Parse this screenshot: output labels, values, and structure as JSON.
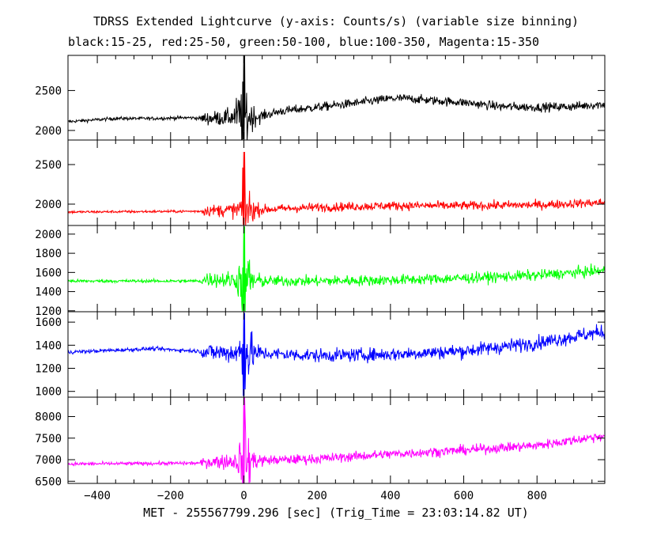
{
  "chart_data": {
    "type": "line",
    "title": "TDRSS Extended Lightcurve (y-axis: Counts/s) (variable size binning)",
    "subtitle": "black:15-25, red:25-50, green:50-100, blue:100-350, Magenta:15-350",
    "xlabel": "MET - 255567799.296 [sec] (Trig_Time = 23:03:14.82 UT)",
    "xlim": [
      -480,
      985
    ],
    "x_ticks": [
      -400,
      -200,
      0,
      200,
      400,
      600,
      800
    ],
    "x_tick_labels": [
      "−400",
      "−200",
      "0",
      "200",
      "400",
      "600",
      "800"
    ],
    "panels": [
      {
        "band": "15-25",
        "color": "#000000",
        "ylim": [
          1880,
          2940
        ],
        "y_ticks": [
          2000,
          2500
        ],
        "y_tick_labels": [
          "2000",
          "2500"
        ],
        "profile": [
          [
            -480,
            2110
          ],
          [
            -350,
            2150
          ],
          [
            -250,
            2150
          ],
          [
            -150,
            2160
          ],
          [
            -110,
            2150
          ],
          [
            -50,
            2160
          ],
          [
            -10,
            2180
          ],
          [
            40,
            2170
          ],
          [
            100,
            2240
          ],
          [
            200,
            2290
          ],
          [
            300,
            2340
          ],
          [
            350,
            2370
          ],
          [
            400,
            2400
          ],
          [
            450,
            2400
          ],
          [
            500,
            2380
          ],
          [
            600,
            2350
          ],
          [
            700,
            2300
          ],
          [
            800,
            2290
          ],
          [
            900,
            2300
          ],
          [
            985,
            2330
          ]
        ],
        "noise": [
          [
            -480,
            15
          ],
          [
            -120,
            15
          ],
          [
            -110,
            55
          ],
          [
            -30,
            80
          ],
          [
            0,
            350
          ],
          [
            30,
            80
          ],
          [
            60,
            40
          ],
          [
            985,
            40
          ]
        ],
        "spike_max": 2940,
        "spike_min": 1890
      },
      {
        "band": "25-50",
        "color": "#ff0000",
        "ylim": [
          1730,
          2810
        ],
        "y_ticks": [
          2000,
          2500
        ],
        "y_tick_labels": [
          "2000",
          "2500"
        ],
        "profile": [
          [
            -480,
            1900
          ],
          [
            -120,
            1910
          ],
          [
            -100,
            1920
          ],
          [
            40,
            1930
          ],
          [
            200,
            1960
          ],
          [
            400,
            1980
          ],
          [
            600,
            1980
          ],
          [
            800,
            1990
          ],
          [
            985,
            2020
          ]
        ],
        "noise": [
          [
            -480,
            12
          ],
          [
            -120,
            12
          ],
          [
            -110,
            45
          ],
          [
            -20,
            70
          ],
          [
            0,
            300
          ],
          [
            30,
            70
          ],
          [
            60,
            40
          ],
          [
            985,
            40
          ]
        ],
        "spike_max": 2660,
        "spike_min": 1740
      },
      {
        "band": "50-100",
        "color": "#00ff00",
        "ylim": [
          1190,
          2090
        ],
        "y_ticks": [
          1200,
          1400,
          1600,
          1800,
          2000
        ],
        "y_tick_labels": [
          "1200",
          "1400",
          "1600",
          "1800",
          "2000"
        ],
        "profile": [
          [
            -480,
            1510
          ],
          [
            -120,
            1510
          ],
          [
            -100,
            1530
          ],
          [
            40,
            1510
          ],
          [
            200,
            1510
          ],
          [
            400,
            1520
          ],
          [
            600,
            1540
          ],
          [
            800,
            1570
          ],
          [
            985,
            1620
          ]
        ],
        "noise": [
          [
            -480,
            12
          ],
          [
            -120,
            12
          ],
          [
            -110,
            50
          ],
          [
            -20,
            70
          ],
          [
            0,
            320
          ],
          [
            30,
            70
          ],
          [
            60,
            40
          ],
          [
            985,
            40
          ]
        ],
        "spike_max": 2080,
        "spike_min": 1200
      },
      {
        "band": "100-350",
        "color": "#0000ff",
        "ylim": [
          950,
          1690
        ],
        "y_ticks": [
          1000,
          1200,
          1400,
          1600
        ],
        "y_tick_labels": [
          "1000",
          "1200",
          "1400",
          "1600"
        ],
        "profile": [
          [
            -480,
            1340
          ],
          [
            -250,
            1370
          ],
          [
            -130,
            1350
          ],
          [
            -100,
            1340
          ],
          [
            40,
            1330
          ],
          [
            200,
            1310
          ],
          [
            400,
            1320
          ],
          [
            600,
            1350
          ],
          [
            800,
            1420
          ],
          [
            985,
            1520
          ]
        ],
        "noise": [
          [
            -480,
            12
          ],
          [
            -120,
            12
          ],
          [
            -110,
            50
          ],
          [
            -20,
            70
          ],
          [
            0,
            250
          ],
          [
            30,
            70
          ],
          [
            60,
            40
          ],
          [
            985,
            45
          ]
        ],
        "spike_max": 1680,
        "spike_min": 960
      },
      {
        "band": "15-350",
        "color": "#ff00ff",
        "ylim": [
          6450,
          8450
        ],
        "y_ticks": [
          6500,
          7000,
          7500,
          8000
        ],
        "y_tick_labels": [
          "6500",
          "7000",
          "7500",
          "8000"
        ],
        "profile": [
          [
            -480,
            6900
          ],
          [
            -120,
            6920
          ],
          [
            -100,
            6950
          ],
          [
            40,
            6980
          ],
          [
            200,
            7020
          ],
          [
            400,
            7130
          ],
          [
            600,
            7220
          ],
          [
            800,
            7330
          ],
          [
            985,
            7560
          ]
        ],
        "noise": [
          [
            -480,
            30
          ],
          [
            -120,
            30
          ],
          [
            -110,
            90
          ],
          [
            -20,
            150
          ],
          [
            0,
            700
          ],
          [
            30,
            150
          ],
          [
            60,
            80
          ],
          [
            985,
            80
          ]
        ],
        "spike_max": 8440,
        "spike_min": 6460
      }
    ]
  }
}
